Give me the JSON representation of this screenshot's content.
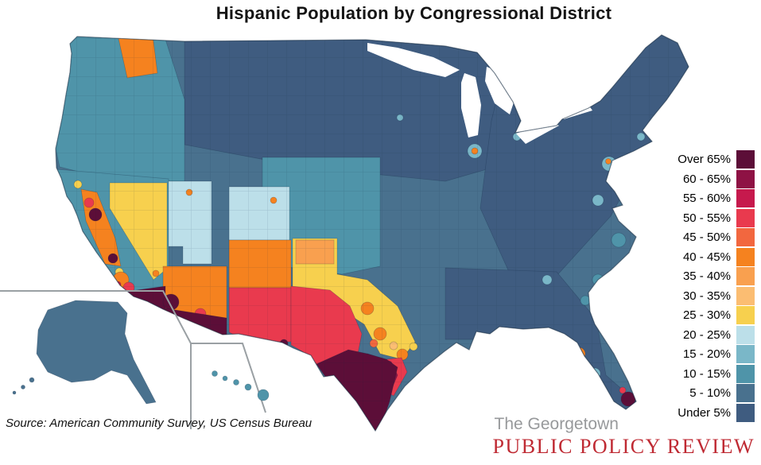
{
  "title": "Hispanic Population by Congressional District",
  "source_note": "Source: American Community Survey, US Census Bureau",
  "branding": {
    "line1": "The Georgetown",
    "line1_color": "#97999b",
    "line2": "PUBLIC POLICY REVIEW",
    "line2_color": "#bf2a33"
  },
  "legend": {
    "items": [
      {
        "id": "over65",
        "label": "Over 65%",
        "color": "#5c0e38"
      },
      {
        "id": "p60",
        "label": "60 - 65%",
        "color": "#8e1244"
      },
      {
        "id": "p55",
        "label": "55 - 60%",
        "color": "#c6194d"
      },
      {
        "id": "p50",
        "label": "50 - 55%",
        "color": "#e93a4e"
      },
      {
        "id": "p45",
        "label": "45 - 50%",
        "color": "#f2673f"
      },
      {
        "id": "p40",
        "label": "40 - 45%",
        "color": "#f5821f"
      },
      {
        "id": "p35",
        "label": "35 - 40%",
        "color": "#f9a04f"
      },
      {
        "id": "p30",
        "label": "30 - 35%",
        "color": "#fbbd72"
      },
      {
        "id": "p25",
        "label": "25 - 30%",
        "color": "#f7d04e"
      },
      {
        "id": "p20",
        "label": "20 - 25%",
        "color": "#bcdfe9"
      },
      {
        "id": "p15",
        "label": "15 - 20%",
        "color": "#7ab7c8"
      },
      {
        "id": "p10",
        "label": "10 - 15%",
        "color": "#4f94a9"
      },
      {
        "id": "p5",
        "label": "5 - 10%",
        "color": "#49718e"
      },
      {
        "id": "under5",
        "label": "Under 5%",
        "color": "#3f5c80"
      }
    ]
  }
}
